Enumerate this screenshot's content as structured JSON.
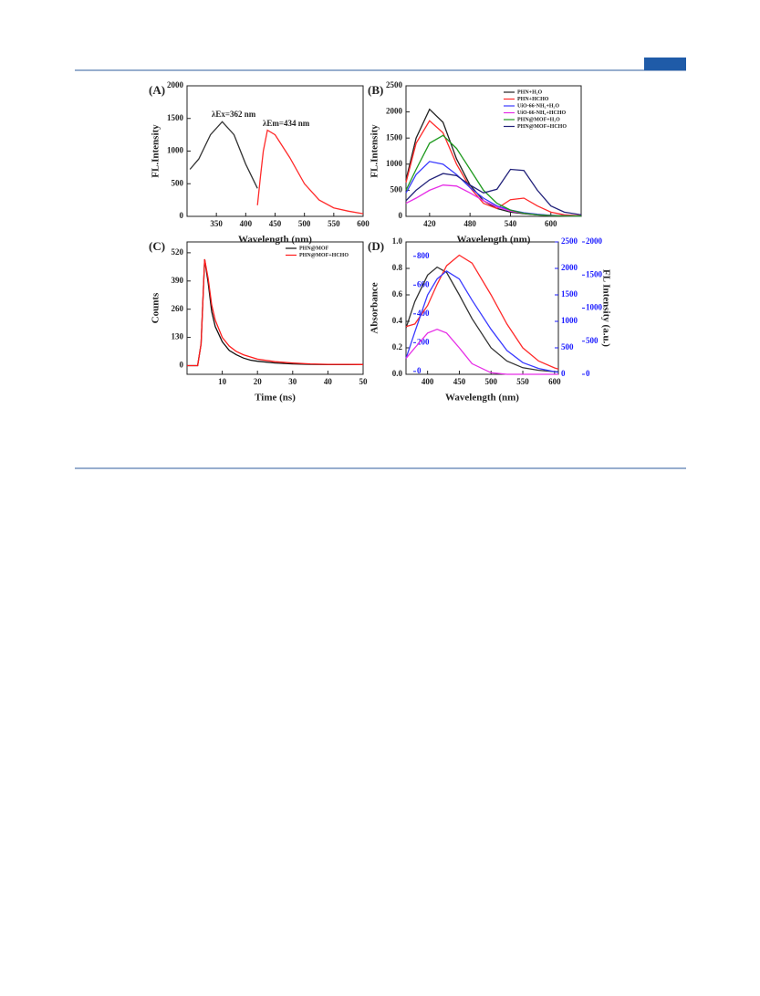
{
  "chart_data": [
    {
      "type": "line",
      "title": "(A)",
      "xlabel": "Wavelength (nm)",
      "ylabel": "FL.Intensity",
      "xlim": [
        300,
        600
      ],
      "xticks": [
        350,
        400,
        450,
        500,
        550,
        600
      ],
      "ylim": [
        0,
        2000
      ],
      "yticks": [
        0,
        500,
        1000,
        1500,
        2000
      ],
      "annotations": [
        "λEx=362 nm",
        "λEm=434 nm"
      ],
      "series": [
        {
          "color": "#333333",
          "x": [
            305,
            320,
            340,
            360,
            380,
            400,
            420
          ],
          "values": [
            720,
            880,
            1250,
            1450,
            1250,
            800,
            430
          ]
        },
        {
          "color": "#ff2a2a",
          "x": [
            420,
            425,
            430,
            437,
            450,
            475,
            500,
            525,
            550,
            575,
            600
          ],
          "values": [
            170,
            600,
            1000,
            1320,
            1250,
            900,
            500,
            250,
            130,
            80,
            40
          ]
        }
      ]
    },
    {
      "type": "line",
      "title": "(B)",
      "xlabel": "Wavelength (nm)",
      "ylabel": "FL.Intensity",
      "xlim": [
        385,
        645
      ],
      "xticks": [
        420,
        480,
        540,
        600
      ],
      "ylim": [
        0,
        2500
      ],
      "yticks": [
        0,
        500,
        1000,
        1500,
        2000,
        2500
      ],
      "legend": "upper right",
      "x": [
        385,
        400,
        420,
        440,
        460,
        480,
        500,
        520,
        540,
        560,
        580,
        600,
        620,
        645
      ],
      "series": [
        {
          "name": "PHN+H₂O",
          "color": "#222222",
          "values": [
            700,
            1500,
            2050,
            1800,
            1100,
            600,
            300,
            150,
            80,
            50,
            30,
            20,
            10,
            5
          ]
        },
        {
          "name": "PHN+HCHO",
          "color": "#ff2a2a",
          "values": [
            650,
            1400,
            1830,
            1600,
            1000,
            550,
            250,
            150,
            320,
            350,
            200,
            80,
            30,
            10
          ]
        },
        {
          "name": "UiO-66-NH₂+H₂O",
          "color": "#3a3aff",
          "values": [
            450,
            800,
            1050,
            1000,
            800,
            550,
            350,
            200,
            120,
            70,
            40,
            20,
            10,
            5
          ]
        },
        {
          "name": "UiO-66-NH₂+HCHO",
          "color": "#e62ee6",
          "values": [
            250,
            350,
            500,
            600,
            580,
            450,
            300,
            180,
            100,
            60,
            30,
            15,
            8,
            5
          ]
        },
        {
          "name": "PHN@MOF+H₂O",
          "color": "#1f9a1f",
          "values": [
            500,
            900,
            1400,
            1550,
            1300,
            900,
            500,
            250,
            120,
            60,
            30,
            15,
            8,
            5
          ]
        },
        {
          "name": "PHN@MOF+HCHO",
          "color": "#22227a",
          "values": [
            300,
            500,
            700,
            820,
            780,
            600,
            450,
            520,
            900,
            880,
            500,
            200,
            80,
            30
          ]
        }
      ]
    },
    {
      "type": "line",
      "title": "(C)",
      "xlabel": "Time (ns)",
      "ylabel": "Counts",
      "xlim": [
        0,
        50
      ],
      "xticks": [
        10,
        20,
        30,
        40,
        50
      ],
      "ylim": [
        -40,
        570
      ],
      "yticks": [
        0,
        130,
        260,
        390,
        520
      ],
      "legend": "upper right",
      "x": [
        0,
        2,
        3,
        4,
        5,
        6,
        7,
        8,
        10,
        12,
        14,
        16,
        18,
        20,
        25,
        30,
        35,
        40,
        45,
        50
      ],
      "series": [
        {
          "name": "PHN@MOF",
          "color": "#111111",
          "values": [
            0,
            0,
            0,
            100,
            490,
            380,
            250,
            180,
            110,
            70,
            50,
            35,
            25,
            20,
            12,
            8,
            6,
            5,
            5,
            5
          ]
        },
        {
          "name": "PHN@MOF+HCHO",
          "color": "#ff1a1a",
          "values": [
            0,
            0,
            0,
            100,
            490,
            400,
            280,
            210,
            130,
            90,
            65,
            50,
            40,
            30,
            18,
            12,
            8,
            6,
            6,
            5
          ]
        }
      ]
    },
    {
      "type": "line",
      "title": "(D)",
      "xlabel": "Wavelength (nm)",
      "ylabel": "Absorbance",
      "y2label": "FL Intensity (a.u.)",
      "xlim": [
        366,
        606
      ],
      "xticks": [
        400,
        450,
        500,
        550,
        600
      ],
      "ylim": [
        0,
        1.0
      ],
      "yticks": [
        {
          "value": 0,
          "label": "0.0"
        },
        0.2,
        0.4,
        0.6,
        0.8,
        {
          "value": 1,
          "label": "1.0"
        }
      ],
      "y2lim": [
        0,
        2500
      ],
      "y2ticks": [
        0,
        500,
        1000,
        1500,
        2000,
        2500
      ],
      "y3lim": [
        0,
        2000
      ],
      "y3ticks": [
        0,
        500,
        1000,
        1500,
        2000
      ],
      "y4lim": [
        -20,
        900
      ],
      "y4ticks": [
        0,
        200,
        400,
        600,
        800
      ],
      "y2color": "#1a1aff",
      "x": [
        366,
        380,
        400,
        415,
        430,
        450,
        470,
        500,
        525,
        550,
        575,
        600,
        606
      ],
      "series": [
        {
          "color": "#333333",
          "values": [
            0.35,
            0.55,
            0.75,
            0.81,
            0.77,
            0.6,
            0.42,
            0.2,
            0.1,
            0.05,
            0.03,
            0.02,
            0.02
          ]
        },
        {
          "color": "#ff2a2a",
          "axis": "y2",
          "values": [
            900,
            950,
            1300,
            1700,
            2050,
            2250,
            2100,
            1500,
            950,
            500,
            250,
            120,
            100
          ]
        },
        {
          "color": "#3a3aff",
          "axis": "y2",
          "values": [
            300,
            800,
            1500,
            1800,
            1950,
            1800,
            1400,
            850,
            450,
            220,
            110,
            50,
            40
          ]
        },
        {
          "color": "#e62ee6",
          "axis": "y2",
          "values": [
            300,
            500,
            780,
            850,
            780,
            500,
            200,
            30,
            0,
            0,
            0,
            0,
            0
          ]
        }
      ]
    }
  ]
}
